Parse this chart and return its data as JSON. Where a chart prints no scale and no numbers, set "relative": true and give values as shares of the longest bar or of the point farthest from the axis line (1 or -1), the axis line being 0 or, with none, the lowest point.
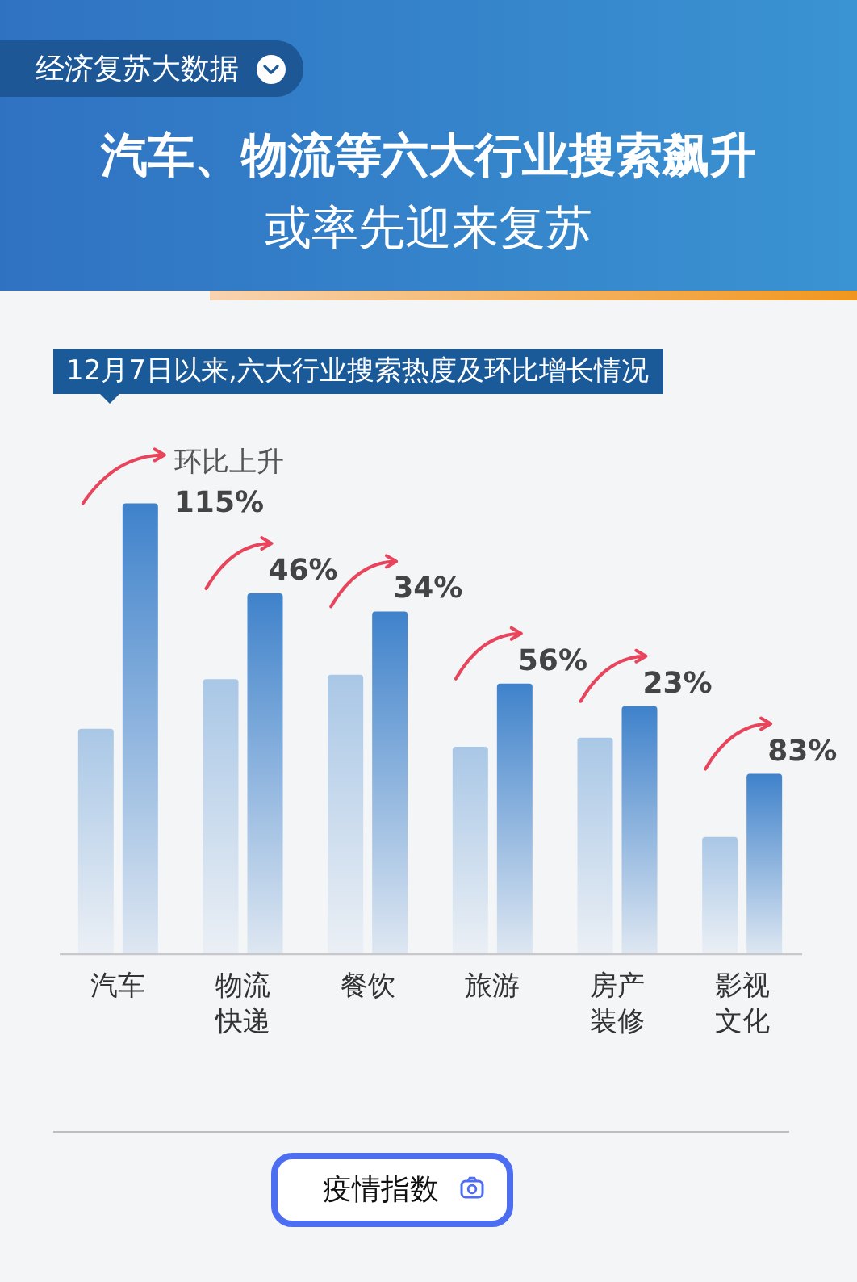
{
  "chart_data": {
    "type": "bar",
    "title": "汽车、物流等六大行业搜索飙升",
    "subtitle": "或率先迎来复苏",
    "categories": [
      "汽车",
      "物流快递",
      "餐饮",
      "旅游",
      "房产装修",
      "影视文化"
    ],
    "series": [
      {
        "color": "#a9c7e6",
        "values": [
          0.5,
          0.61,
          0.62,
          0.46,
          0.48,
          0.26
        ]
      },
      {
        "color": "#3f82cb",
        "values": [
          1,
          0.8,
          0.76,
          0.6,
          0.55,
          0.4
        ]
      }
    ],
    "relative": true,
    "annotations": [
      "经济复苏大数据",
      "12月7日以来,六大行业搜索热度及环比增长情况",
      "环比上升",
      {
        "text": "115%",
        "x": "汽车",
        "y": 1
      },
      {
        "text": "46%",
        "x": "物流快递",
        "y": 0.8
      },
      {
        "text": "34%",
        "x": "餐饮",
        "y": 0.76
      },
      {
        "text": "56%",
        "x": "旅游",
        "y": 0.6
      },
      {
        "text": "23%",
        "x": "房产装修",
        "y": 0.55
      },
      {
        "text": "83%",
        "x": "影视文化",
        "y": 0.4
      },
      "疫情指数"
    ]
  }
}
